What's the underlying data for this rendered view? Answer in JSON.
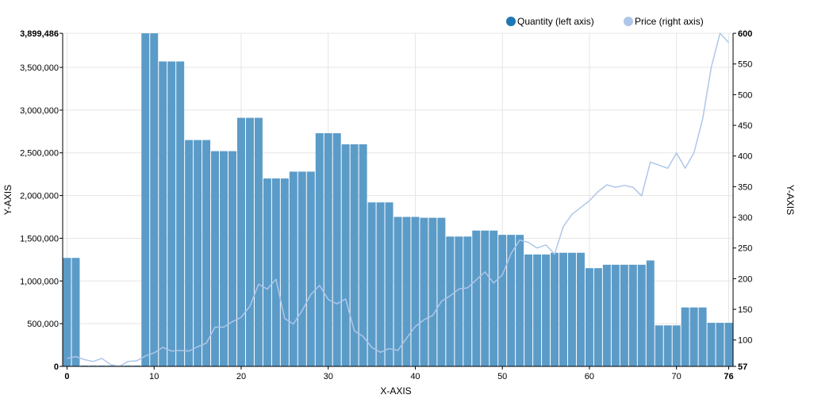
{
  "chart_data": {
    "type": "bar+line",
    "legend_position": "top-right",
    "grid": true,
    "xlabel": "X-AXIS",
    "ylabel_left": "Y-AXIS",
    "ylabel_right": "Y-AXIS",
    "x_domain": [
      0,
      76
    ],
    "x_ticks": [
      0,
      10,
      20,
      30,
      40,
      50,
      60,
      70,
      76
    ],
    "y_left_domain": [
      0,
      3899486
    ],
    "y_left_ticks": [
      0,
      500000,
      1000000,
      1500000,
      2000000,
      2500000,
      3000000,
      3500000,
      3899486
    ],
    "y_left_tick_labels": [
      "0",
      "500,000",
      "1,000,000",
      "1,500,000",
      "2,000,000",
      "2,500,000",
      "3,000,000",
      "3,500,000",
      "3,899,486"
    ],
    "y_right_domain": [
      57,
      600
    ],
    "y_right_ticks": [
      57,
      100,
      150,
      200,
      250,
      300,
      350,
      400,
      450,
      500,
      550,
      600
    ],
    "y_right_tick_labels": [
      "57",
      "100",
      "150",
      "200",
      "250",
      "300",
      "350",
      "400",
      "450",
      "500",
      "550",
      "600"
    ],
    "colors": {
      "bar": "#5b9bc8",
      "line": "#aec7e8",
      "legend_bar": "#1f77b4",
      "legend_line": "#aec7e8"
    },
    "series": [
      {
        "name": "Quantity (left axis)",
        "kind": "bar",
        "axis": "left",
        "x": [
          0,
          1,
          2,
          3,
          4,
          5,
          6,
          7,
          8,
          9,
          10,
          11,
          12,
          13,
          14,
          15,
          16,
          17,
          18,
          19,
          20,
          21,
          22,
          23,
          24,
          25,
          26,
          27,
          28,
          29,
          30,
          31,
          32,
          33,
          34,
          35,
          36,
          37,
          38,
          39,
          40,
          41,
          42,
          43,
          44,
          45,
          46,
          47,
          48,
          49,
          50,
          51,
          52,
          53,
          54,
          55,
          56,
          57,
          58,
          59,
          60,
          61,
          62,
          63,
          64,
          65,
          66,
          67,
          68,
          69,
          70,
          71,
          72,
          73,
          74,
          75,
          76
        ],
        "values": [
          1270000,
          1270000,
          10000,
          10000,
          10000,
          10000,
          10000,
          10000,
          10000,
          3899486,
          3899486,
          3570000,
          3570000,
          3570000,
          2650000,
          2650000,
          2650000,
          2520000,
          2520000,
          2520000,
          2910000,
          2910000,
          2910000,
          2200000,
          2200000,
          2200000,
          2280000,
          2280000,
          2280000,
          2730000,
          2730000,
          2730000,
          2600000,
          2600000,
          2600000,
          1920000,
          1920000,
          1920000,
          1750000,
          1750000,
          1750000,
          1740000,
          1740000,
          1740000,
          1520000,
          1520000,
          1520000,
          1590000,
          1590000,
          1590000,
          1540000,
          1540000,
          1540000,
          1310000,
          1310000,
          1310000,
          1330000,
          1330000,
          1330000,
          1330000,
          1150000,
          1150000,
          1190000,
          1190000,
          1190000,
          1190000,
          1190000,
          1240000,
          480000,
          480000,
          480000,
          690000,
          690000,
          690000,
          510000,
          510000,
          510000
        ]
      },
      {
        "name": "Price (right axis)",
        "kind": "line",
        "axis": "right",
        "x": [
          0,
          1,
          2,
          3,
          4,
          5,
          6,
          7,
          8,
          9,
          10,
          11,
          12,
          13,
          14,
          15,
          16,
          17,
          18,
          19,
          20,
          21,
          22,
          23,
          24,
          25,
          26,
          27,
          28,
          29,
          30,
          31,
          32,
          33,
          34,
          35,
          36,
          37,
          38,
          39,
          40,
          41,
          42,
          43,
          44,
          45,
          46,
          47,
          48,
          49,
          50,
          51,
          52,
          53,
          54,
          55,
          56,
          57,
          58,
          59,
          60,
          61,
          62,
          63,
          64,
          65,
          66,
          67,
          68,
          69,
          70,
          71,
          72,
          73,
          74,
          75,
          76
        ],
        "values": [
          70,
          73,
          68,
          65,
          70,
          60,
          57,
          65,
          66,
          74,
          79,
          88,
          82,
          83,
          82,
          89,
          95,
          121,
          121,
          130,
          137,
          155,
          191,
          183,
          199,
          135,
          126,
          148,
          174,
          189,
          166,
          159,
          167,
          115,
          106,
          88,
          80,
          86,
          83,
          103,
          122,
          133,
          140,
          163,
          172,
          183,
          185,
          198,
          211,
          193,
          206,
          241,
          263,
          259,
          250,
          255,
          240,
          285,
          305,
          316,
          327,
          342,
          353,
          349,
          352,
          349,
          335,
          390,
          385,
          380,
          405,
          380,
          405,
          460,
          545,
          600,
          585
        ]
      }
    ]
  }
}
